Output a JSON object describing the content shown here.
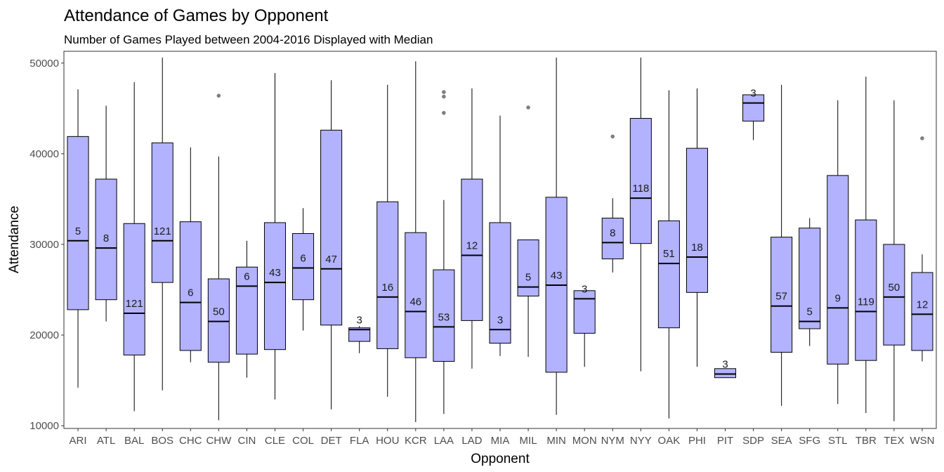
{
  "chart_data": {
    "type": "boxplot",
    "title": "Attendance of Games by Opponent",
    "subtitle": "Number of Games Played between 2004-2016 Displayed with Median",
    "xlabel": "Opponent",
    "ylabel": "Attendance",
    "ylim": [
      9700,
      51300
    ],
    "yticks": [
      10000,
      20000,
      30000,
      40000,
      50000
    ],
    "grid": false,
    "colors": {
      "box_fill": "#b2b2ff",
      "box_stroke": "#000000",
      "outlier": "#808080",
      "panel_border": "#333333"
    },
    "categories": [
      "ARI",
      "ATL",
      "BAL",
      "BOS",
      "CHC",
      "CHW",
      "CIN",
      "CLE",
      "COL",
      "DET",
      "FLA",
      "HOU",
      "KCR",
      "LAA",
      "LAD",
      "MIA",
      "MIL",
      "MIN",
      "MON",
      "NYM",
      "NYY",
      "OAK",
      "PHI",
      "PIT",
      "SDP",
      "SEA",
      "SFG",
      "STL",
      "TBR",
      "TEX",
      "WSN"
    ],
    "boxes": [
      {
        "category": "ARI",
        "min": 14200,
        "q1": 22800,
        "median": 30400,
        "q3": 41900,
        "max": 47100,
        "outliers": [],
        "count": "5"
      },
      {
        "category": "ATL",
        "min": 21500,
        "q1": 23900,
        "median": 29600,
        "q3": 37200,
        "max": 45300,
        "outliers": [],
        "count": "8"
      },
      {
        "category": "BAL",
        "min": 11600,
        "q1": 17800,
        "median": 22400,
        "q3": 32300,
        "max": 47900,
        "outliers": [],
        "count": "121"
      },
      {
        "category": "BOS",
        "min": 13900,
        "q1": 25800,
        "median": 30400,
        "q3": 41200,
        "max": 50600,
        "outliers": [],
        "count": "121"
      },
      {
        "category": "CHC",
        "min": 17000,
        "q1": 18300,
        "median": 23600,
        "q3": 32500,
        "max": 40700,
        "outliers": [],
        "count": "6"
      },
      {
        "category": "CHW",
        "min": 10600,
        "q1": 17000,
        "median": 21500,
        "q3": 26200,
        "max": 39700,
        "outliers": [
          46400
        ],
        "count": "50"
      },
      {
        "category": "CIN",
        "min": 15300,
        "q1": 17900,
        "median": 25400,
        "q3": 27500,
        "max": 30400,
        "outliers": [],
        "count": "6"
      },
      {
        "category": "CLE",
        "min": 12900,
        "q1": 18400,
        "median": 25800,
        "q3": 32400,
        "max": 48900,
        "outliers": [],
        "count": "43"
      },
      {
        "category": "COL",
        "min": 20500,
        "q1": 23900,
        "median": 27400,
        "q3": 31200,
        "max": 34000,
        "outliers": [],
        "count": "6"
      },
      {
        "category": "DET",
        "min": 11800,
        "q1": 21100,
        "median": 27300,
        "q3": 42600,
        "max": 48100,
        "outliers": [],
        "count": "47"
      },
      {
        "category": "FLA",
        "min": 18000,
        "q1": 19300,
        "median": 20600,
        "q3": 20800,
        "max": 21000,
        "outliers": [],
        "count": "3"
      },
      {
        "category": "HOU",
        "min": 13200,
        "q1": 18500,
        "median": 24200,
        "q3": 34700,
        "max": 47600,
        "outliers": [],
        "count": "16"
      },
      {
        "category": "KCR",
        "min": 10400,
        "q1": 17500,
        "median": 22600,
        "q3": 31300,
        "max": 50200,
        "outliers": [],
        "count": "46"
      },
      {
        "category": "LAA",
        "min": 11300,
        "q1": 17100,
        "median": 20900,
        "q3": 27200,
        "max": 34900,
        "outliers": [
          44500,
          46300,
          46800
        ],
        "count": "53"
      },
      {
        "category": "LAD",
        "min": 16300,
        "q1": 21600,
        "median": 28800,
        "q3": 37200,
        "max": 47200,
        "outliers": [],
        "count": "12"
      },
      {
        "category": "MIA",
        "min": 17700,
        "q1": 19100,
        "median": 20600,
        "q3": 32400,
        "max": 44200,
        "outliers": [],
        "count": "3"
      },
      {
        "category": "MIL",
        "min": 17600,
        "q1": 24300,
        "median": 25300,
        "q3": 30500,
        "max": 30500,
        "outliers": [
          45100
        ],
        "count": "5"
      },
      {
        "category": "MIN",
        "min": 11200,
        "q1": 15900,
        "median": 25500,
        "q3": 35200,
        "max": 50600,
        "outliers": [],
        "count": "43"
      },
      {
        "category": "MON",
        "min": 16500,
        "q1": 20200,
        "median": 24000,
        "q3": 24900,
        "max": 24900,
        "outliers": [],
        "count": "3"
      },
      {
        "category": "NYM",
        "min": 26900,
        "q1": 28400,
        "median": 30200,
        "q3": 32900,
        "max": 35100,
        "outliers": [
          41900
        ],
        "count": "8"
      },
      {
        "category": "NYY",
        "min": 16000,
        "q1": 30100,
        "median": 35100,
        "q3": 43900,
        "max": 50600,
        "outliers": [],
        "count": "118"
      },
      {
        "category": "OAK",
        "min": 10800,
        "q1": 20800,
        "median": 27900,
        "q3": 32600,
        "max": 47000,
        "outliers": [],
        "count": "51"
      },
      {
        "category": "PHI",
        "min": 16500,
        "q1": 24700,
        "median": 28600,
        "q3": 40600,
        "max": 47200,
        "outliers": [],
        "count": "18"
      },
      {
        "category": "PIT",
        "min": 15300,
        "q1": 15300,
        "median": 15700,
        "q3": 16300,
        "max": 16300,
        "outliers": [],
        "count": "3"
      },
      {
        "category": "SDP",
        "min": 41500,
        "q1": 43600,
        "median": 45600,
        "q3": 46500,
        "max": 46500,
        "outliers": [],
        "count": "3"
      },
      {
        "category": "SEA",
        "min": 12200,
        "q1": 18100,
        "median": 23200,
        "q3": 30800,
        "max": 47600,
        "outliers": [],
        "count": "57"
      },
      {
        "category": "SFG",
        "min": 18800,
        "q1": 20700,
        "median": 21500,
        "q3": 31800,
        "max": 32900,
        "outliers": [],
        "count": "5"
      },
      {
        "category": "STL",
        "min": 12400,
        "q1": 16800,
        "median": 23000,
        "q3": 37600,
        "max": 45900,
        "outliers": [],
        "count": "9"
      },
      {
        "category": "TBR",
        "min": 11400,
        "q1": 17200,
        "median": 22600,
        "q3": 32700,
        "max": 48500,
        "outliers": [],
        "count": "119"
      },
      {
        "category": "TEX",
        "min": 10500,
        "q1": 18900,
        "median": 24200,
        "q3": 30000,
        "max": 45900,
        "outliers": [],
        "count": "50"
      },
      {
        "category": "WSN",
        "min": 17100,
        "q1": 18300,
        "median": 22300,
        "q3": 26900,
        "max": 28900,
        "outliers": [
          41700
        ],
        "count": "12"
      }
    ]
  }
}
